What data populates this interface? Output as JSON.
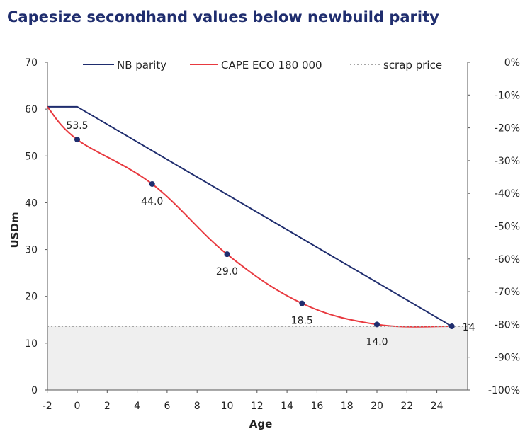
{
  "chart_data": {
    "type": "line",
    "title": "Capesize secondhand values below newbuild parity",
    "xlabel": "Age",
    "ylabel": "USDm",
    "xlim": [
      -2,
      26
    ],
    "ylim": [
      0,
      70
    ],
    "y2lim": [
      -100,
      0
    ],
    "x_ticks": [
      -2,
      0,
      2,
      4,
      6,
      8,
      10,
      12,
      14,
      16,
      18,
      20,
      22,
      24
    ],
    "y_ticks": [
      0,
      10,
      20,
      30,
      40,
      50,
      60,
      70
    ],
    "y2_ticks": [
      "0%",
      "-10%",
      "-20%",
      "-30%",
      "-40%",
      "-50%",
      "-60%",
      "-70%",
      "-80%",
      "-90%",
      "-100%"
    ],
    "grid": false,
    "legend_position": "top",
    "scrap_shading": "#efefef",
    "series": [
      {
        "name": "NB parity",
        "color": "#1f2d6e",
        "style": "solid",
        "x": [
          -2,
          0,
          25
        ],
        "y": [
          60.5,
          60.5,
          13.6
        ]
      },
      {
        "name": "CAPE ECO 180 000",
        "color": "#e8393f",
        "style": "smooth",
        "x": [
          -2,
          0,
          5,
          10,
          15,
          20,
          25
        ],
        "y": [
          60.5,
          53.5,
          44.0,
          29.0,
          18.5,
          14.0,
          13.6
        ]
      },
      {
        "name": "scrap price",
        "color": "#a6a6a6",
        "style": "dotted",
        "x": [
          -2,
          26
        ],
        "y": [
          13.6,
          13.6
        ]
      }
    ],
    "markers": [
      {
        "x": 0,
        "y": 53.5
      },
      {
        "x": 5,
        "y": 44.0
      },
      {
        "x": 10,
        "y": 29.0
      },
      {
        "x": 15,
        "y": 18.5
      },
      {
        "x": 20,
        "y": 14.0
      },
      {
        "x": 25,
        "y": 13.6
      }
    ],
    "data_labels": [
      {
        "x": 0,
        "y": 53.5,
        "text": "53.5",
        "pos": "above"
      },
      {
        "x": 5,
        "y": 44.0,
        "text": "44.0",
        "pos": "below"
      },
      {
        "x": 10,
        "y": 29.0,
        "text": "29.0",
        "pos": "below"
      },
      {
        "x": 15,
        "y": 18.5,
        "text": "18.5",
        "pos": "below"
      },
      {
        "x": 20,
        "y": 14.0,
        "text": "14.0",
        "pos": "below"
      },
      {
        "x": 25,
        "y": 13.6,
        "text": "14",
        "pos": "right"
      }
    ]
  }
}
